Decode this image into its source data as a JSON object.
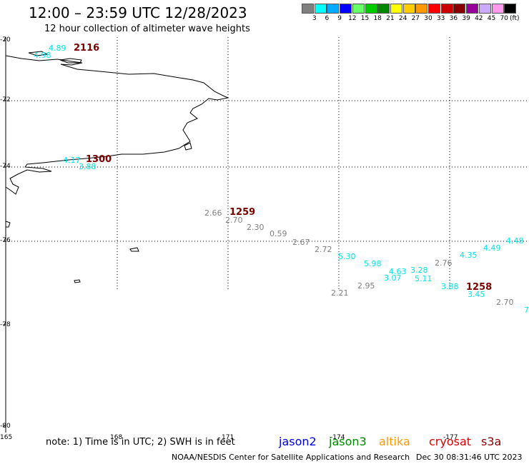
{
  "title": "12:00 – 23:59 UTC 12/28/2023",
  "subtitle": "12 hour collection of altimeter wave heights",
  "legend": {
    "unit": "(ft)",
    "colors": [
      "#808080",
      "#00ffff",
      "#00aaff",
      "#0000ff",
      "#66ff66",
      "#00cc00",
      "#008800",
      "#ffff00",
      "#ffcc00",
      "#ff9900",
      "#ff0000",
      "#cc0000",
      "#880000",
      "#990099",
      "#ccaaff",
      "#ff99ee",
      "#000000"
    ],
    "labels": [
      "3",
      "6",
      "9",
      "12",
      "15",
      "18",
      "21",
      "24",
      "27",
      "30",
      "33",
      "36",
      "39",
      "42",
      "45",
      "70"
    ]
  },
  "lat_labels": [
    "-70",
    "-72",
    "-74",
    "-76",
    "-78",
    "-80"
  ],
  "lon_labels": [
    "165",
    "168",
    "171",
    "-174",
    "-177"
  ],
  "observations": [
    {
      "v": "4.89",
      "c": "#00e5ee"
    },
    {
      "v": "4.98",
      "c": "#00e5ee"
    },
    {
      "v": "4.17",
      "c": "#00e5ee"
    },
    {
      "v": "3.88",
      "c": "#00e5ee"
    },
    {
      "v": "2.66",
      "c": "#808080"
    },
    {
      "v": "2.70",
      "c": "#808080"
    },
    {
      "v": "2.30",
      "c": "#808080"
    },
    {
      "v": "0.59",
      "c": "#808080"
    },
    {
      "v": "2.67",
      "c": "#808080"
    },
    {
      "v": "2.72",
      "c": "#808080"
    },
    {
      "v": "5.30",
      "c": "#00e5ee"
    },
    {
      "v": "5.98",
      "c": "#00e5ee"
    },
    {
      "v": "4.63",
      "c": "#00e5ee"
    },
    {
      "v": "3.28",
      "c": "#00e5ee"
    },
    {
      "v": "3.07",
      "c": "#00e5ee"
    },
    {
      "v": "5.11",
      "c": "#00e5ee"
    },
    {
      "v": "2.76",
      "c": "#808080"
    },
    {
      "v": "4.35",
      "c": "#00e5ee"
    },
    {
      "v": "4.49",
      "c": "#00e5ee"
    },
    {
      "v": "4.48",
      "c": "#00e5ee"
    },
    {
      "v": "2.21",
      "c": "#808080"
    },
    {
      "v": "2.95",
      "c": "#808080"
    },
    {
      "v": "3.88",
      "c": "#00e5ee"
    },
    {
      "v": "3.45",
      "c": "#00e5ee"
    },
    {
      "v": "2.70",
      "c": "#808080"
    },
    {
      "v": "7",
      "c": "#00e5ee"
    }
  ],
  "time_labels": [
    "2116",
    "1300",
    "1259",
    "1258"
  ],
  "note": "note: 1) Time is in UTC; 2) SWH is in feet",
  "satellites": [
    {
      "name": "jason2",
      "color": "#0000dd"
    },
    {
      "name": "jason3",
      "color": "#008800"
    },
    {
      "name": "altika",
      "color": "#ff9900"
    },
    {
      "name": "cryosat",
      "color": "#dd0000"
    },
    {
      "name": "s3a",
      "color": "#880000"
    }
  ],
  "footer_left": "NOAA/NESDIS Center for Satellite Applications and Research",
  "footer_right": "Dec 30 08:31:46 UTC 2023"
}
